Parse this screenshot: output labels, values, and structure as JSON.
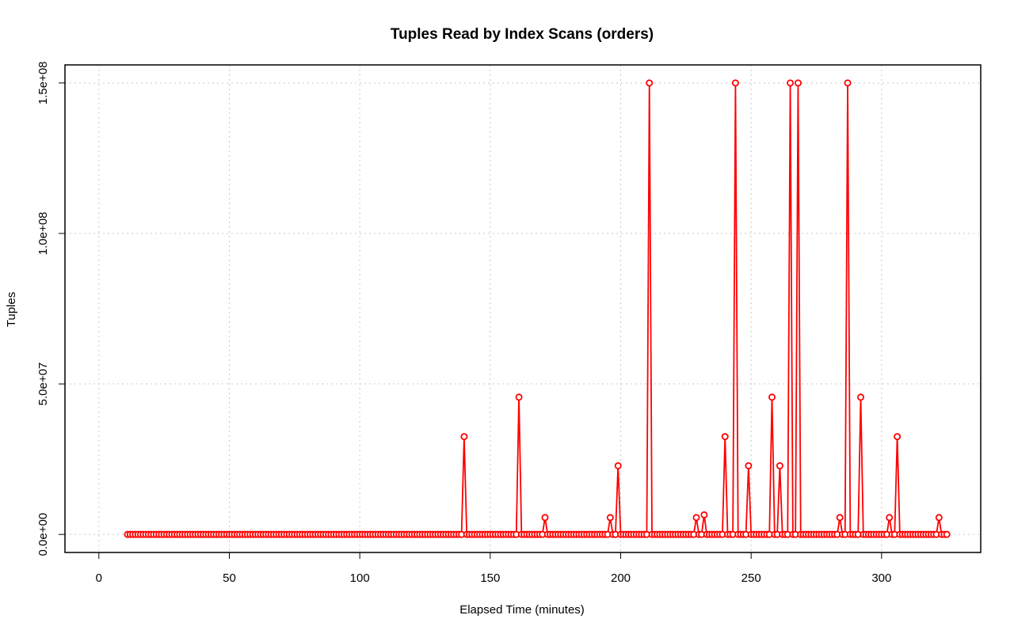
{
  "chart_data": {
    "type": "line",
    "title": "Tuples Read by Index Scans (orders)",
    "xlabel": "Elapsed Time (minutes)",
    "ylabel": "Tuples",
    "xlim": [
      -13,
      338
    ],
    "ylim": [
      -6000000,
      156000000
    ],
    "x_ticks": [
      0,
      50,
      100,
      150,
      200,
      250,
      300
    ],
    "x_tick_labels": [
      "0",
      "50",
      "100",
      "150",
      "200",
      "250",
      "300"
    ],
    "y_ticks": [
      0,
      50000000,
      100000000,
      150000000
    ],
    "y_tick_labels": [
      "0.0e+00",
      "5.0e+07",
      "1.0e+08",
      "1.5e+08"
    ],
    "grid": true,
    "series_color": "#ff0000",
    "series": [
      {
        "baseline_range": [
          11,
          325
        ],
        "baseline_value": 0,
        "peaks": [
          {
            "x": 140,
            "y": 32500000
          },
          {
            "x": 161,
            "y": 45600000
          },
          {
            "x": 171,
            "y": 5600000
          },
          {
            "x": 196,
            "y": 5600000
          },
          {
            "x": 199,
            "y": 22800000
          },
          {
            "x": 211,
            "y": 150000000
          },
          {
            "x": 229,
            "y": 5600000
          },
          {
            "x": 232,
            "y": 6500000
          },
          {
            "x": 240,
            "y": 32500000
          },
          {
            "x": 244,
            "y": 150000000
          },
          {
            "x": 249,
            "y": 22800000
          },
          {
            "x": 258,
            "y": 45600000
          },
          {
            "x": 261,
            "y": 22800000
          },
          {
            "x": 265,
            "y": 150000000
          },
          {
            "x": 268,
            "y": 150000000
          },
          {
            "x": 284,
            "y": 5600000
          },
          {
            "x": 287,
            "y": 150000000
          },
          {
            "x": 292,
            "y": 45600000
          },
          {
            "x": 303,
            "y": 5600000
          },
          {
            "x": 306,
            "y": 32500000
          },
          {
            "x": 322,
            "y": 5600000
          }
        ]
      }
    ]
  }
}
